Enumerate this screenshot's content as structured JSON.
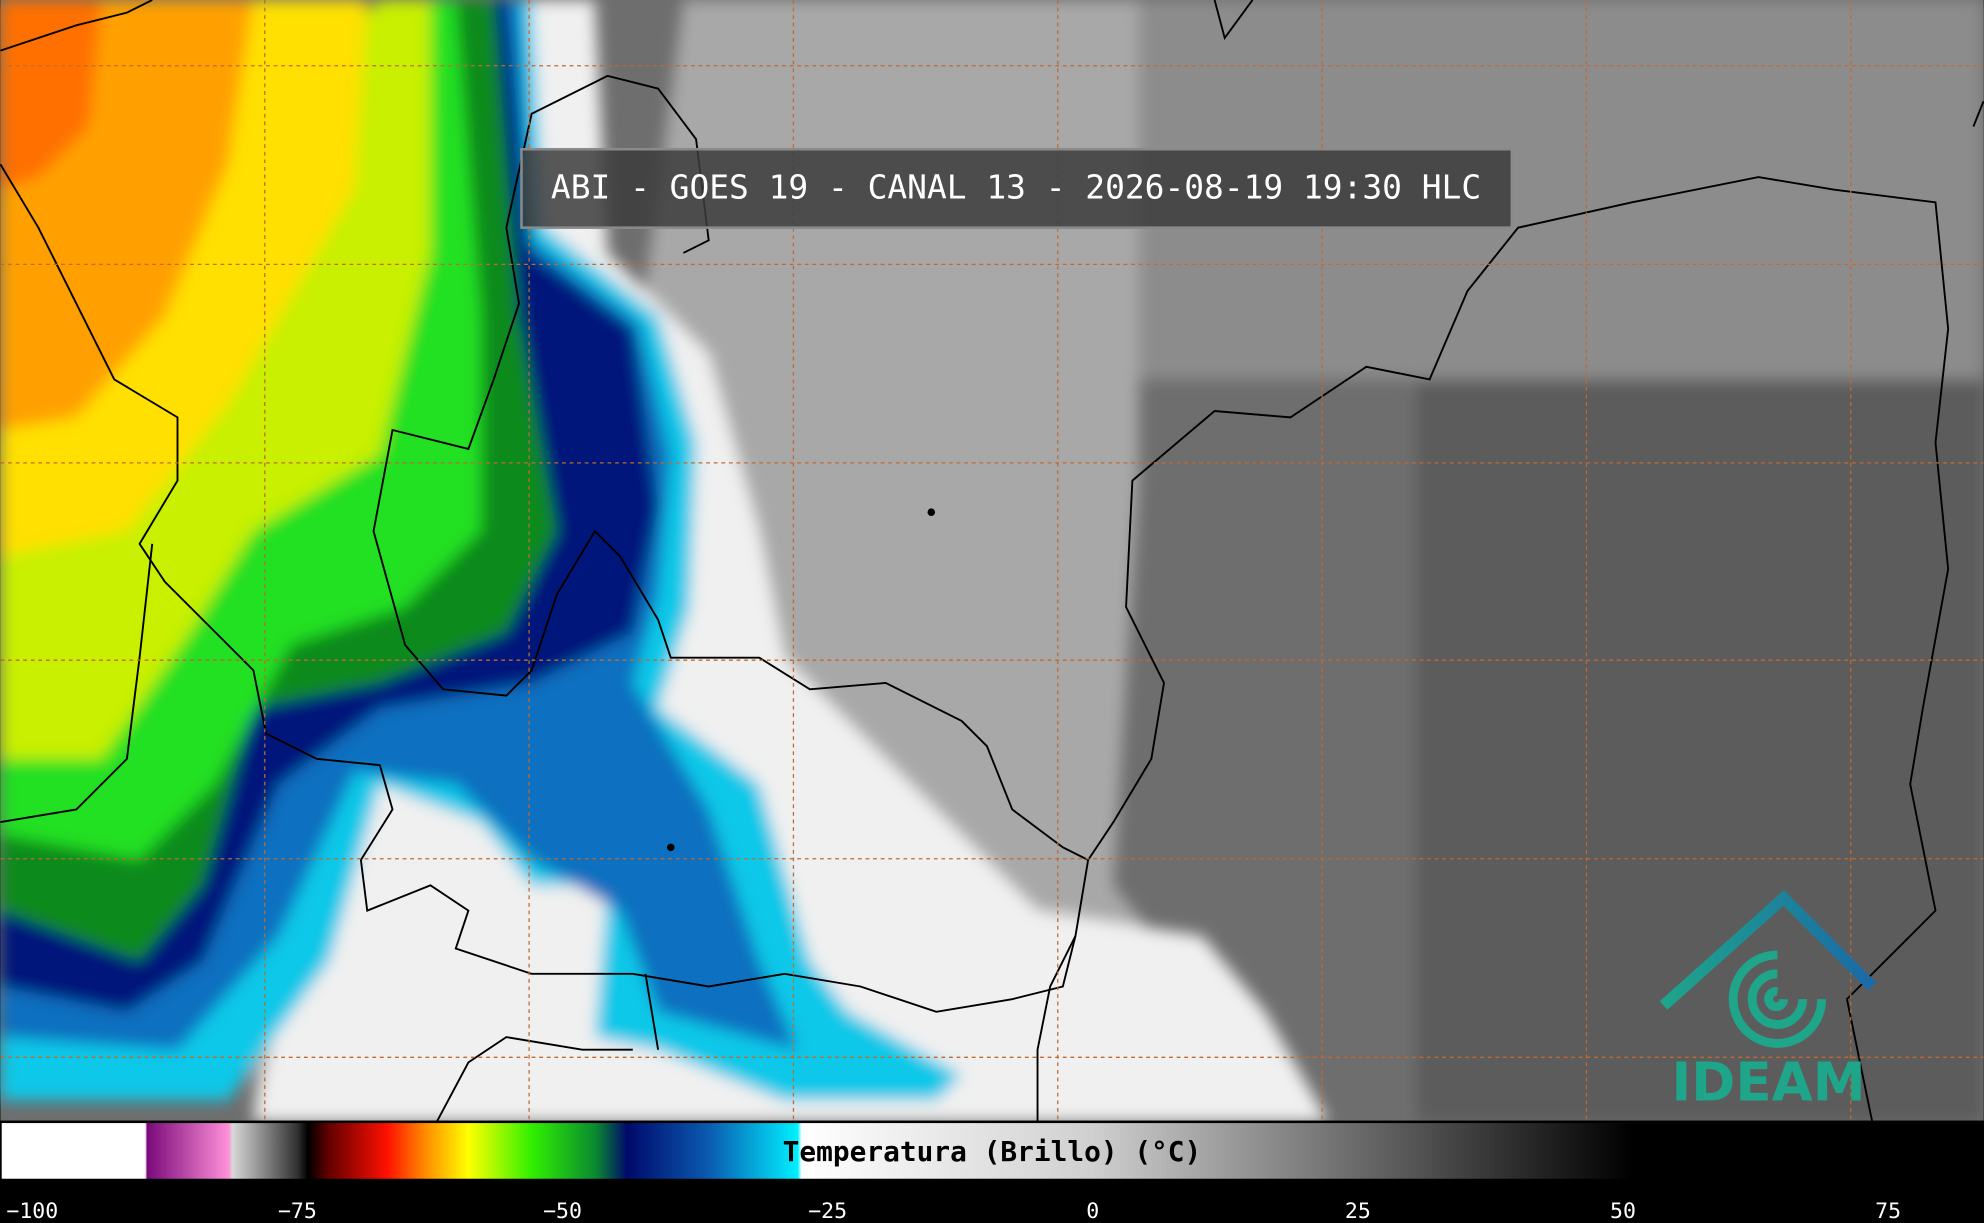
{
  "map": {
    "title": "ABI - GOES 19 - CANAL 13 - 2026-08-19 19:30 HLC",
    "logo": "IDEAM"
  },
  "colorbar": {
    "label": "Temperatura (Brillo) (°C)",
    "clim": [
      -103,
      84
    ],
    "ticks": [
      {
        "value": -100,
        "label": "−100"
      },
      {
        "value": -75,
        "label": "−75"
      },
      {
        "value": -50,
        "label": "−50"
      },
      {
        "value": -25,
        "label": "−25"
      },
      0,
      25,
      50,
      75
    ],
    "minor_ticks": [
      -95,
      -90,
      -85,
      -80,
      -70,
      -65,
      -60,
      -55,
      -45,
      -40,
      -35,
      -30,
      -20,
      -15,
      -10,
      -5,
      5,
      10,
      15,
      20,
      30,
      35,
      40,
      45,
      55,
      60,
      65,
      70,
      80
    ]
  }
}
